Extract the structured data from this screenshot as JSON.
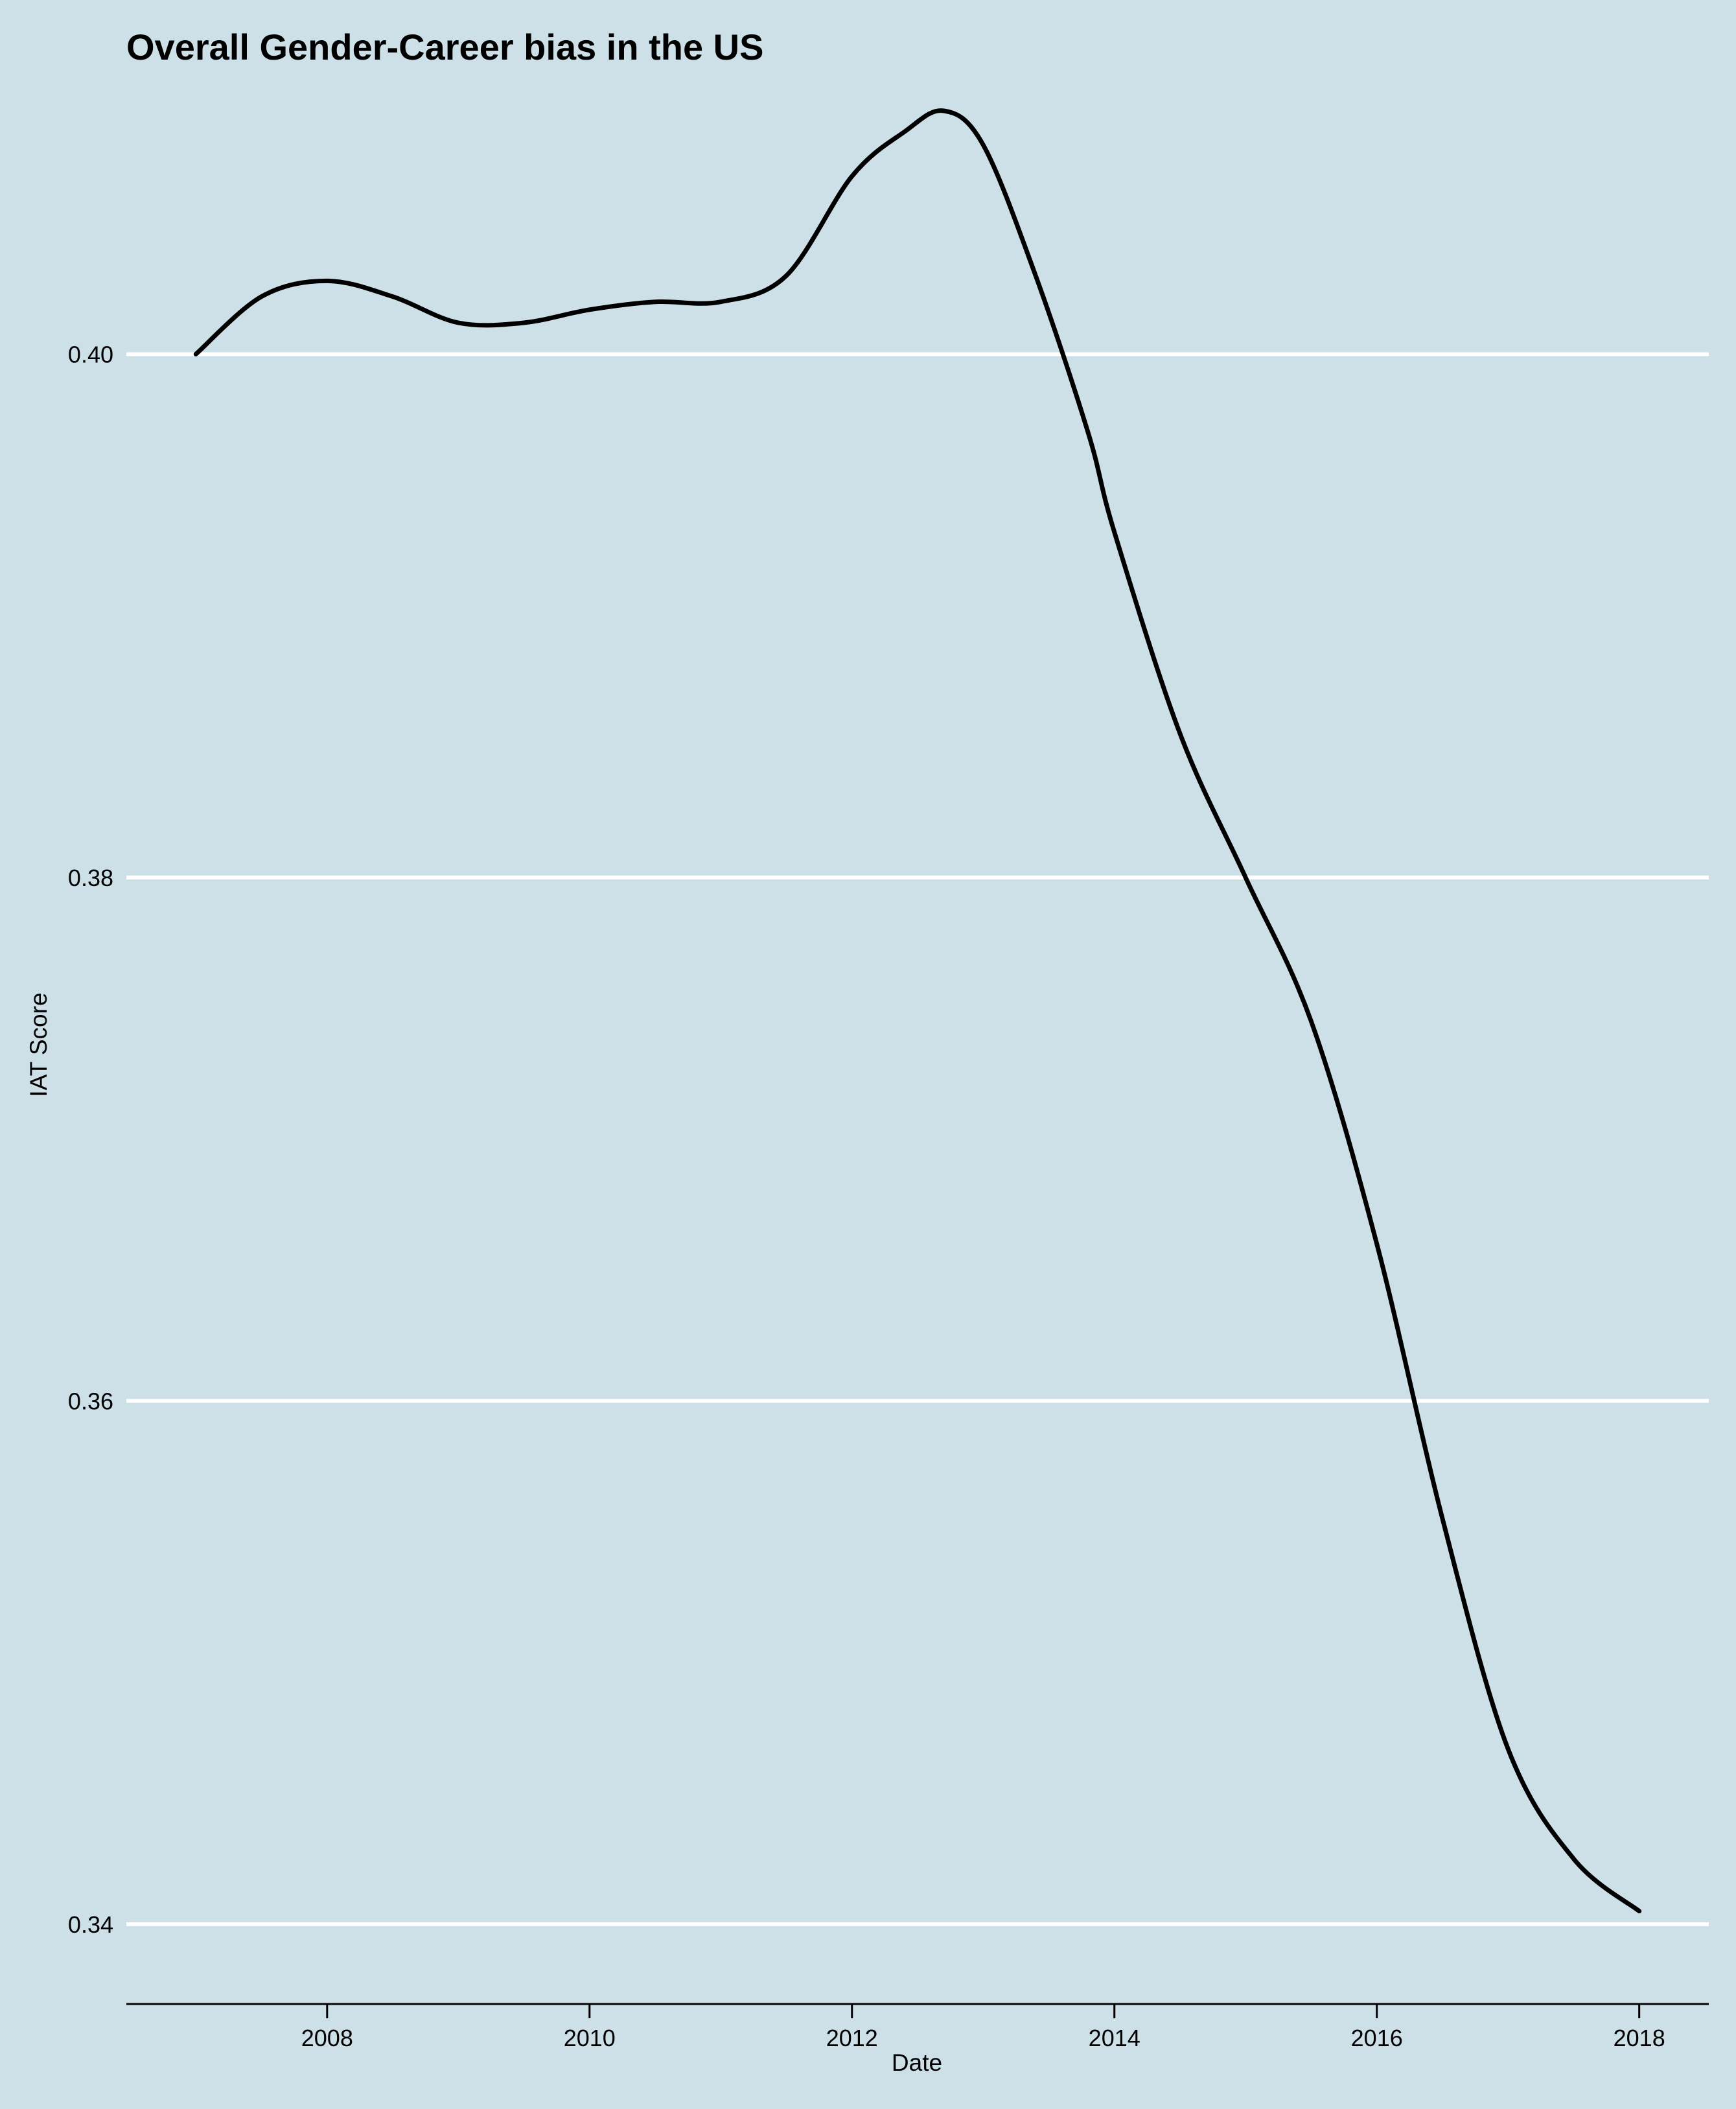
{
  "chart_data": {
    "type": "line",
    "title": "Overall Gender-Career bias in the US",
    "xlabel": "Date",
    "ylabel": "IAT Score",
    "x_ticks": [
      "2008",
      "2010",
      "2012",
      "2014",
      "2016",
      "2018"
    ],
    "y_ticks": [
      "0.34",
      "0.36",
      "0.38",
      "0.40"
    ],
    "xlim": [
      2006.47,
      2018.53
    ],
    "ylim": [
      0.337,
      0.4092
    ],
    "grid": "horizontal",
    "legend": "none",
    "series": [
      {
        "x": [
          2007.0,
          2007.5,
          2008.0,
          2008.5,
          2009.0,
          2009.5,
          2010.0,
          2010.5,
          2011.0,
          2011.5,
          2012.0,
          2012.4,
          2012.7,
          2013.0,
          2013.4,
          2013.8,
          2014.0,
          2014.5,
          2015.0,
          2015.5,
          2016.0,
          2016.5,
          2017.0,
          2017.5,
          2018.0
        ],
        "y": [
          0.4,
          0.4022,
          0.4028,
          0.4022,
          0.4012,
          0.4012,
          0.4017,
          0.402,
          0.402,
          0.403,
          0.4068,
          0.4085,
          0.4093,
          0.408,
          0.403,
          0.397,
          0.3932,
          0.3855,
          0.38,
          0.3745,
          0.366,
          0.3555,
          0.3467,
          0.3425,
          0.3405
        ]
      }
    ],
    "colors": {
      "background": "#cddfe7",
      "line": "#000000",
      "grid": "#ffffff",
      "axis": "#000000"
    }
  }
}
